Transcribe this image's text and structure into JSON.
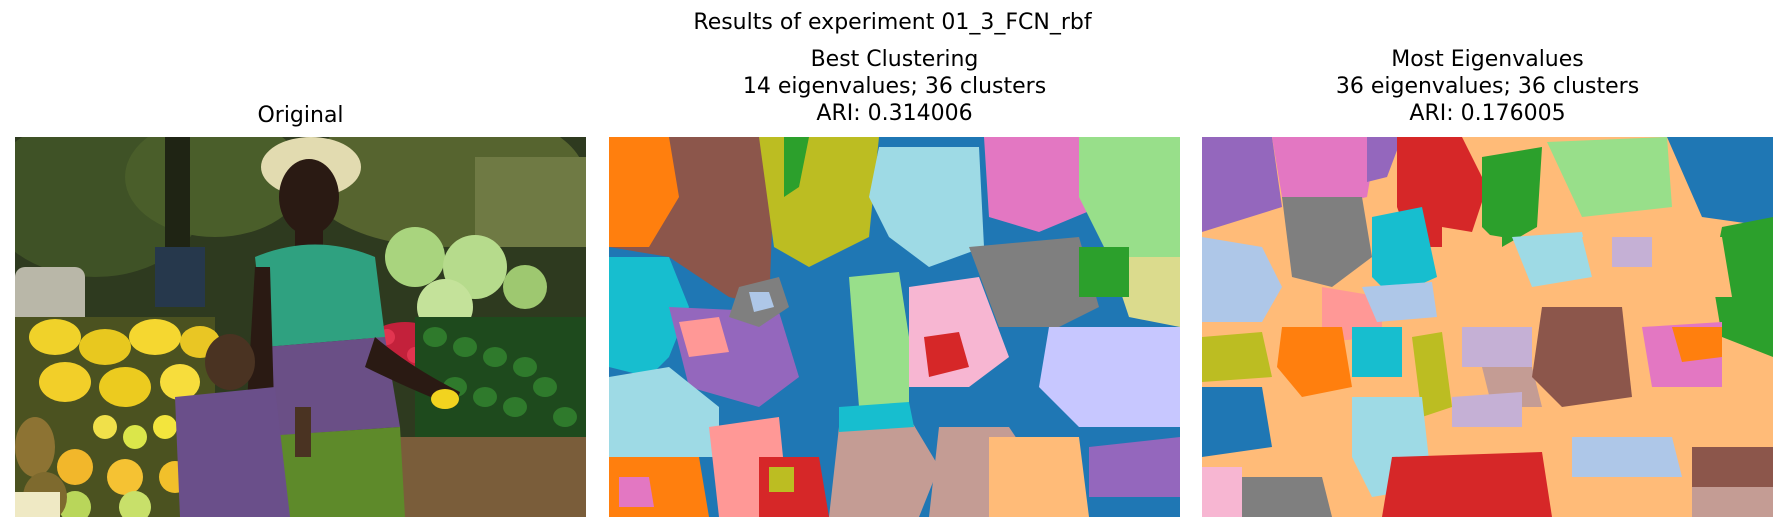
{
  "figure": {
    "suptitle": "Results of experiment 01_3_FCN_rbf"
  },
  "panels": [
    {
      "id": "original",
      "title_lines": [
        "Original"
      ]
    },
    {
      "id": "best-clustering",
      "title_lines": [
        "Best Clustering",
        "14 eigenvalues; 36 clusters",
        "ARI: 0.314006"
      ]
    },
    {
      "id": "most-eigenvalues",
      "title_lines": [
        "Most Eigenvalues",
        "36 eigenvalues; 36 clusters",
        "ARI: 0.176005"
      ]
    }
  ]
}
